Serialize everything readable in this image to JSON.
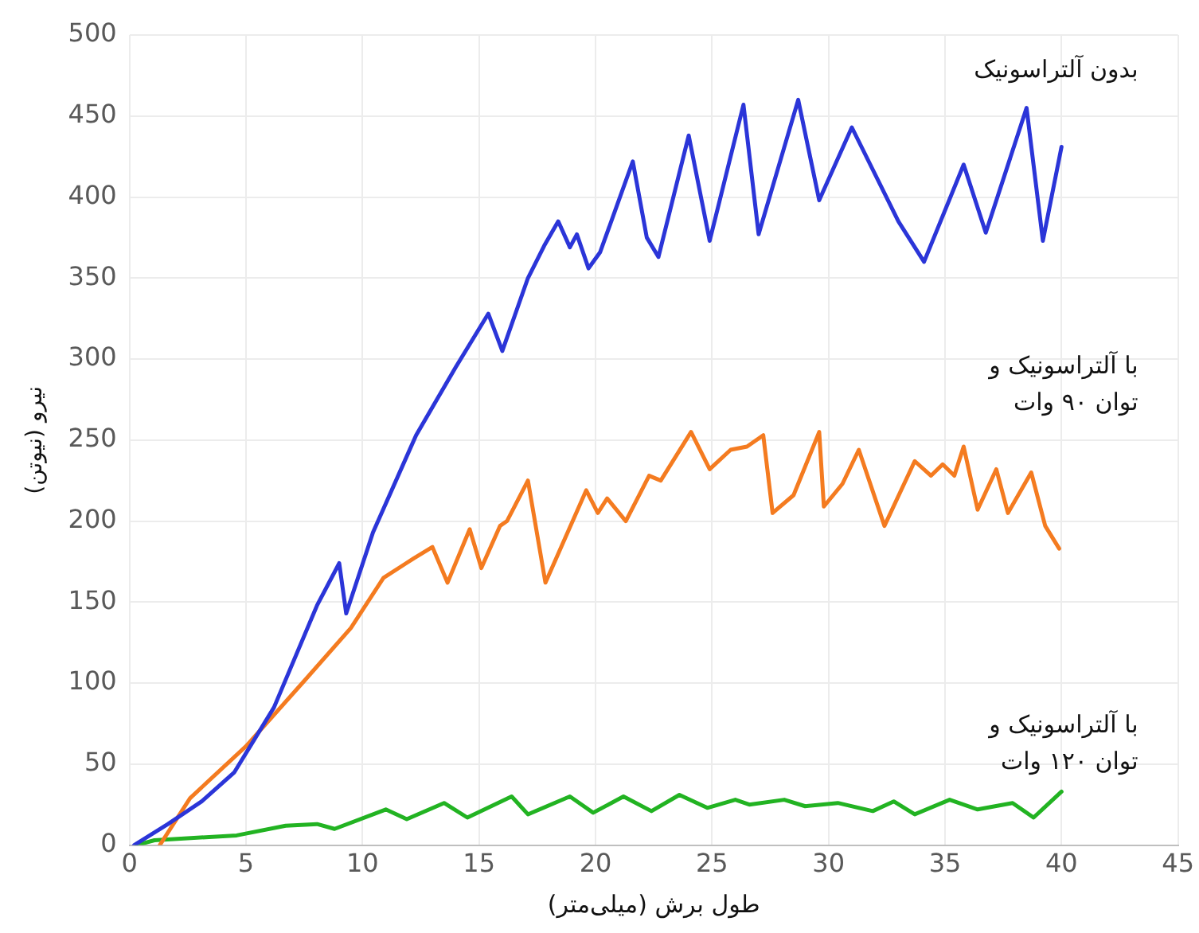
{
  "chart_data": {
    "type": "line",
    "xlabel": "طول برش (میلی‌متر)",
    "ylabel": "نیرو (نیوتن)",
    "xlim": [
      0,
      45
    ],
    "xticks": [
      0,
      5,
      10,
      15,
      20,
      25,
      30,
      35,
      40,
      45
    ],
    "ylim": [
      0,
      500
    ],
    "yticks": [
      0,
      50,
      100,
      150,
      200,
      250,
      300,
      350,
      400,
      450,
      500
    ],
    "grid": true,
    "legend": false,
    "marker": "none",
    "line_style": "solid",
    "series": [
      {
        "name": "بدون آلتراسونیک",
        "color": "#2b35d8",
        "x": [
          0.2,
          1.65,
          3.1,
          4.5,
          6.2,
          8.05,
          9.0,
          9.3,
          10.45,
          12.3,
          14.0,
          15.4,
          16.0,
          17.1,
          17.8,
          18.4,
          18.9,
          19.2,
          19.7,
          20.2,
          21.6,
          22.2,
          22.7,
          24.0,
          24.9,
          26.35,
          27.0,
          28.7,
          29.6,
          31.0,
          33.0,
          34.1,
          35.8,
          36.75,
          38.5,
          39.2,
          40.0
        ],
        "values": [
          0,
          13,
          27,
          45,
          85,
          148,
          174,
          143,
          193,
          253,
          295,
          328,
          305,
          350,
          370,
          385,
          369,
          377,
          356,
          366,
          422,
          375,
          363,
          438,
          373,
          457,
          377,
          460,
          398,
          443,
          385,
          360,
          420,
          378,
          455,
          373,
          431
        ]
      },
      {
        "name": "با آلتراسونیک و\nتوان ۹۰ وات",
        "color": "#f47b20",
        "x": [
          1.3,
          2.6,
          5.0,
          7.6,
          9.5,
          10.9,
          12.2,
          13.0,
          13.65,
          14.6,
          15.1,
          15.9,
          16.2,
          17.1,
          17.85,
          19.6,
          20.1,
          20.5,
          21.3,
          22.3,
          22.8,
          24.1,
          24.9,
          25.8,
          26.5,
          27.2,
          27.6,
          28.5,
          29.6,
          29.8,
          30.6,
          31.3,
          32.4,
          33.7,
          34.4,
          34.9,
          35.4,
          35.8,
          36.4,
          37.2,
          37.7,
          38.7,
          39.3,
          39.9
        ],
        "values": [
          0,
          29,
          61,
          103,
          134,
          165,
          177,
          184,
          162,
          195,
          171,
          197,
          200,
          225,
          162,
          219,
          205,
          214,
          200,
          228,
          225,
          255,
          232,
          244,
          246,
          253,
          205,
          216,
          255,
          209,
          223,
          244,
          197,
          237,
          228,
          235,
          228,
          246,
          207,
          232,
          205,
          230,
          197,
          183
        ]
      },
      {
        "name": "با آلتراسونیک و\nتوان ۱۲۰ وات",
        "color": "#22b322",
        "x": [
          0.3,
          1.07,
          4.6,
          6.7,
          8.05,
          8.8,
          11.0,
          11.9,
          13.5,
          14.5,
          16.4,
          17.1,
          18.9,
          19.9,
          21.2,
          22.4,
          23.6,
          24.8,
          26.0,
          26.6,
          28.1,
          29.0,
          30.4,
          31.9,
          32.8,
          33.7,
          35.2,
          36.4,
          37.9,
          38.8,
          40.0
        ],
        "values": [
          0,
          3,
          6,
          12,
          13,
          10,
          22,
          16,
          26,
          17,
          30,
          19,
          30,
          20,
          30,
          21,
          31,
          23,
          28,
          25,
          28,
          24,
          26,
          21,
          27,
          19,
          28,
          22,
          26,
          17,
          33
        ]
      }
    ]
  }
}
